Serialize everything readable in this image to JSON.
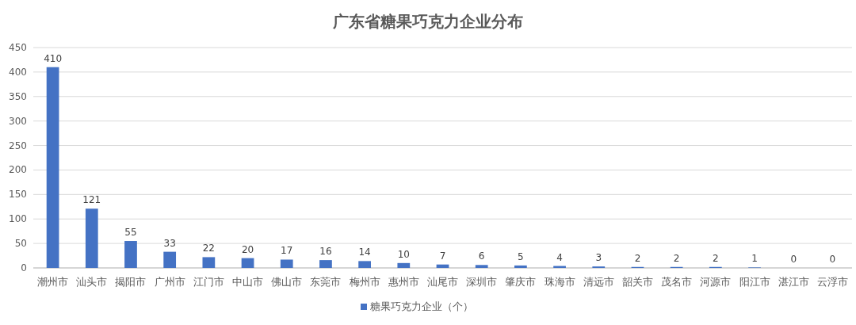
{
  "chart_data": {
    "type": "bar",
    "title": "广东省糖果巧克力企业分布",
    "categories": [
      "潮州市",
      "汕头市",
      "揭阳市",
      "广州市",
      "江门市",
      "中山市",
      "佛山市",
      "东莞市",
      "梅州市",
      "惠州市",
      "汕尾市",
      "深圳市",
      "肇庆市",
      "珠海市",
      "清远市",
      "韶关市",
      "茂名市",
      "河源市",
      "阳江市",
      "湛江市",
      "云浮市"
    ],
    "series": [
      {
        "name": "糖果巧克力企业（个）",
        "color": "#4472c4",
        "values": [
          410,
          121,
          55,
          33,
          22,
          20,
          17,
          16,
          14,
          10,
          7,
          6,
          5,
          4,
          3,
          2,
          2,
          2,
          1,
          0,
          0
        ]
      }
    ],
    "ylim": [
      0,
      450
    ],
    "yticks": [
      0,
      50,
      100,
      150,
      200,
      250,
      300,
      350,
      400,
      450
    ],
    "grid": "y",
    "legend": "bottom",
    "data_labels": true
  }
}
